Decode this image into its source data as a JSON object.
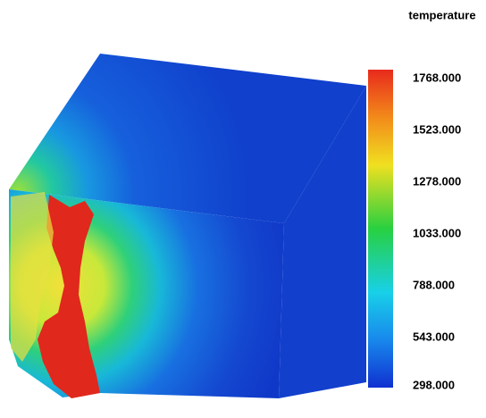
{
  "colorbar": {
    "title": "temperature",
    "ticks": [
      "1768.000",
      "1523.000",
      "1278.000",
      "1033.000",
      "788.000",
      "543.000",
      "298.000"
    ]
  }
}
